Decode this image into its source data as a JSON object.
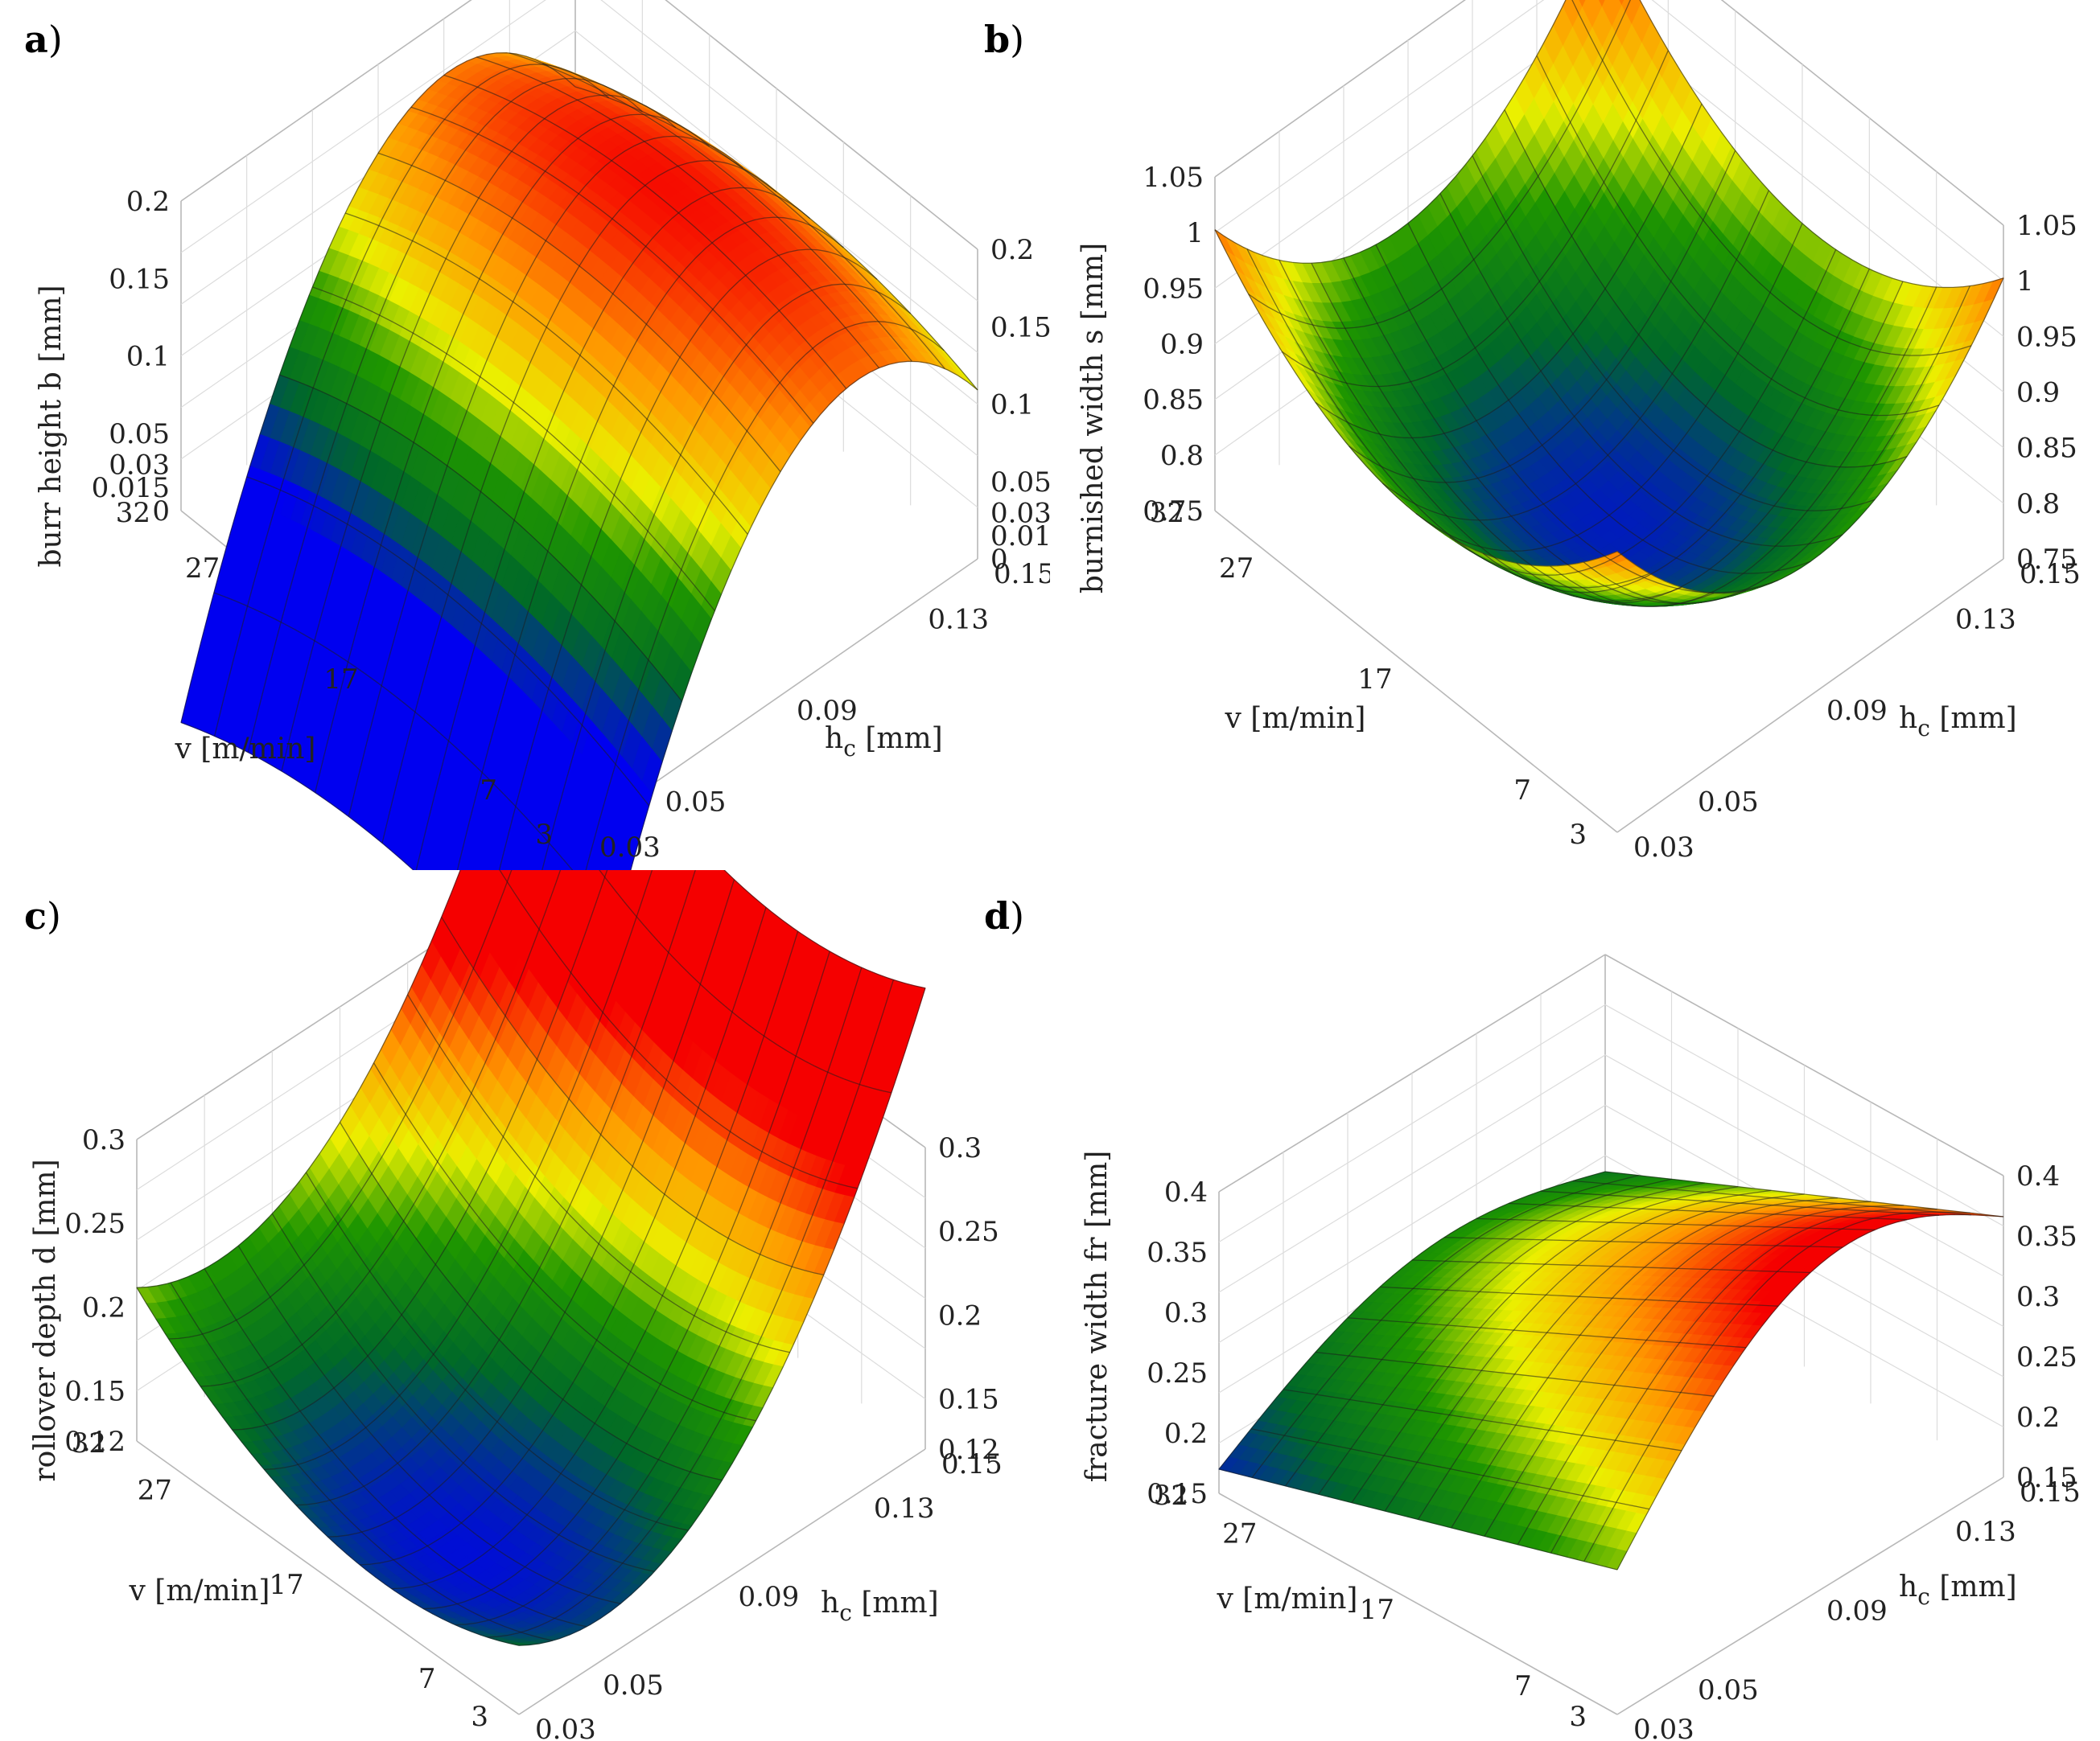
{
  "figure": {
    "panels": [
      {
        "id": "a",
        "letter": "a",
        "paren": ")"
      },
      {
        "id": "b",
        "letter": "b",
        "paren": ")"
      },
      {
        "id": "c",
        "letter": "c",
        "paren": ")"
      },
      {
        "id": "d",
        "letter": "d",
        "paren": ")"
      }
    ]
  },
  "chart_data": [
    {
      "type": "surface",
      "panel": "a",
      "zlabel": "burr height b [mm]",
      "xlabel": "v [m/min]",
      "ylabel_main": "h",
      "ylabel_sub": "c",
      "ylabel_unit": " [mm]",
      "x_ticks": [
        "3",
        "7",
        "17",
        "27",
        "32"
      ],
      "y_ticks": [
        "0.03",
        "0.05",
        "0.09",
        "0.13",
        "0.15"
      ],
      "z_ticks": [
        "0",
        "0.015",
        "0.03",
        "0.05",
        "0.1",
        "0.15",
        "0.2"
      ],
      "x_range": [
        3,
        32
      ],
      "y_range": [
        0.03,
        0.15
      ],
      "z_range": [
        0,
        0.2
      ],
      "corners": {
        "v3_h003": 0.0,
        "v32_h003": 0.015,
        "v3_h015": 0.1,
        "v32_h015": 0.1
      },
      "peak": {
        "v": 17,
        "h": 0.11,
        "value": 0.2
      }
    },
    {
      "type": "surface",
      "panel": "b",
      "zlabel": "burnished width s [mm]",
      "xlabel": "v [m/min]",
      "ylabel_main": "h",
      "ylabel_sub": "c",
      "ylabel_unit": " [mm]",
      "x_ticks": [
        "3",
        "7",
        "17",
        "27",
        "32"
      ],
      "y_ticks": [
        "0.03",
        "0.05",
        "0.09",
        "0.13",
        "0.15"
      ],
      "z_ticks": [
        "0.75",
        "0.8",
        "0.85",
        "0.9",
        "0.95",
        "1",
        "1.05"
      ],
      "x_range": [
        3,
        32
      ],
      "y_range": [
        0.03,
        0.15
      ],
      "z_range": [
        0.75,
        1.05
      ],
      "corners": {
        "v3_h003": 0.82,
        "v32_h003": 1.0,
        "v3_h015": 1.0,
        "v32_h015": 1.05
      },
      "minimum": {
        "v": 15,
        "h": 0.09,
        "value": 0.76
      }
    },
    {
      "type": "surface",
      "panel": "c",
      "zlabel": "rollover depth d [mm]",
      "xlabel": "v [m/min]",
      "ylabel_main": "h",
      "ylabel_sub": "c",
      "ylabel_unit": " [mm]",
      "x_ticks": [
        "3",
        "7",
        "17",
        "27",
        "32"
      ],
      "y_ticks": [
        "0.03",
        "0.05",
        "0.09",
        "0.13",
        "0.15"
      ],
      "z_ticks": [
        "0.12",
        "0.15",
        "0.2",
        "0.25",
        "0.3"
      ],
      "x_range": [
        3,
        32
      ],
      "y_range": [
        0.03,
        0.15
      ],
      "z_range": [
        0.12,
        0.3
      ],
      "corners": {
        "v3_h003": 0.13,
        "v32_h003": 0.28,
        "v3_h015": 0.3,
        "v32_h015": 0.3
      },
      "minimum": {
        "v": 13,
        "h": 0.06,
        "value": 0.125
      }
    },
    {
      "type": "surface",
      "panel": "d",
      "zlabel": "fracture width fr [mm]",
      "xlabel": "v [m/min]",
      "ylabel_main": "h",
      "ylabel_sub": "c",
      "ylabel_unit": " [mm]",
      "x_ticks": [
        "3",
        "7",
        "17",
        "27",
        "32"
      ],
      "y_ticks": [
        "0.03",
        "0.05",
        "0.09",
        "0.13",
        "0.15"
      ],
      "z_ticks": [
        "0.15",
        "0.2",
        "0.25",
        "0.3",
        "0.35",
        "0.4"
      ],
      "x_range": [
        3,
        32
      ],
      "y_range": [
        0.03,
        0.15
      ],
      "z_range": [
        0.15,
        0.4
      ],
      "corners": {
        "v3_h003": 0.27,
        "v32_h003": 0.15,
        "v3_h015": 0.2,
        "v32_h015": 0.37
      },
      "peak": {
        "v": 3,
        "h": 0.03,
        "value": 0.27
      }
    }
  ]
}
